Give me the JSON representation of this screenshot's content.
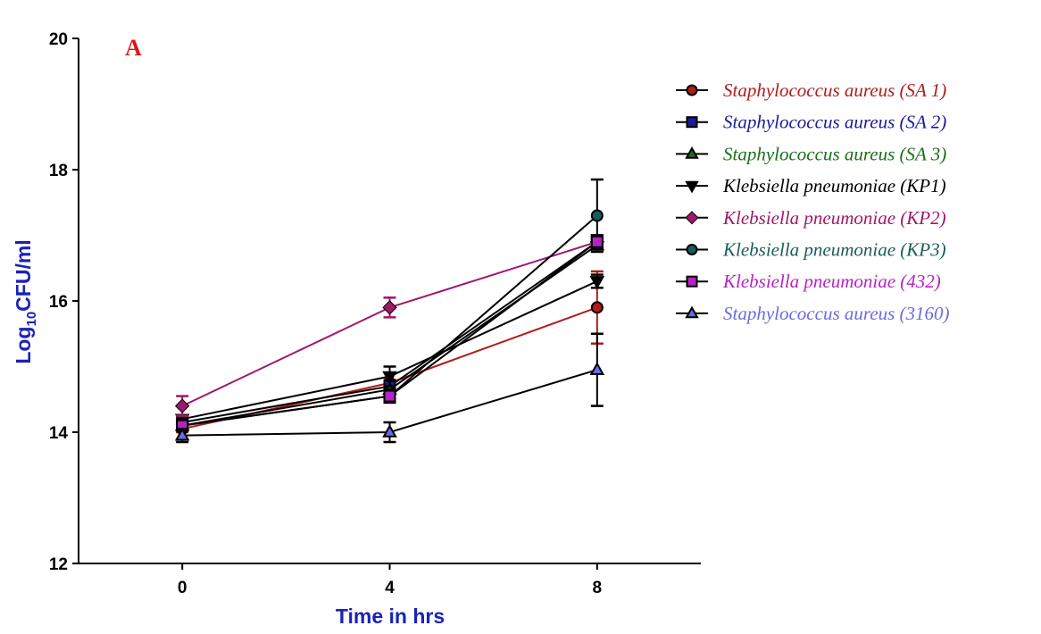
{
  "chart_data": {
    "type": "line",
    "panel_label": "A",
    "xlabel": "Time in hrs",
    "ylabel_main": "Log",
    "ylabel_sub": "10",
    "ylabel_rest": "CFU/ml",
    "x": [
      0,
      4,
      8
    ],
    "xlim": [
      -2,
      10
    ],
    "ylim": [
      12,
      20
    ],
    "x_ticks": [
      "0",
      "4",
      "8"
    ],
    "y_ticks": [
      "12",
      "14",
      "16",
      "18",
      "20"
    ],
    "y_tick_values": [
      12,
      14,
      16,
      18,
      20
    ],
    "grid": false,
    "legend_position": "right",
    "series": [
      {
        "name": "Staphylococcus aureus (SA 1)",
        "color": "#b01c1c",
        "line_color": "#b01c1c",
        "marker": "circle",
        "values": [
          14.05,
          14.75,
          15.9
        ],
        "errors": [
          0.05,
          0.05,
          0.55
        ]
      },
      {
        "name": "Staphylococcus aureus (SA 2)",
        "color": "#1a1a9c",
        "line_color": "#000000",
        "marker": "square",
        "values": [
          14.15,
          14.7,
          16.9
        ],
        "errors": [
          0.05,
          0.05,
          0.1
        ]
      },
      {
        "name": "Staphylococcus aureus (SA 3)",
        "color": "#1a6e1a",
        "line_color": "#000000",
        "marker": "triangle-up",
        "values": [
          14.1,
          14.65,
          16.85
        ],
        "errors": [
          0.05,
          0.05,
          0.1
        ]
      },
      {
        "name": "Klebsiella pneumoniae (KP1)",
        "color": "#000000",
        "line_color": "#000000",
        "marker": "triangle-down",
        "values": [
          14.2,
          14.85,
          16.3
        ],
        "errors": [
          0.05,
          0.15,
          0.1
        ]
      },
      {
        "name": "Klebsiella pneumoniae (KP2)",
        "color": "#a0186a",
        "line_color": "#a0186a",
        "marker": "diamond",
        "values": [
          14.4,
          15.9,
          16.9
        ],
        "errors": [
          0.15,
          0.15,
          0.1
        ]
      },
      {
        "name": "Klebsiella pneumoniae (KP3)",
        "color": "#1c5c5c",
        "line_color": "#000000",
        "marker": "circle",
        "values": [
          14.1,
          14.55,
          17.3
        ],
        "errors": [
          0.05,
          0.05,
          0.55
        ]
      },
      {
        "name": "Klebsiella pneumoniae  (432)",
        "color": "#b622c6",
        "line_color": "#000000",
        "marker": "square",
        "values": [
          14.1,
          14.55,
          16.9
        ],
        "errors": [
          0.05,
          0.1,
          0.1
        ]
      },
      {
        "name": "Staphylococcus aureus  (3160)",
        "color": "#6a6ae6",
        "line_color": "#000000",
        "marker": "triangle-up",
        "values": [
          13.95,
          14.0,
          14.95
        ],
        "errors": [
          0.1,
          0.15,
          0.55
        ]
      }
    ]
  }
}
